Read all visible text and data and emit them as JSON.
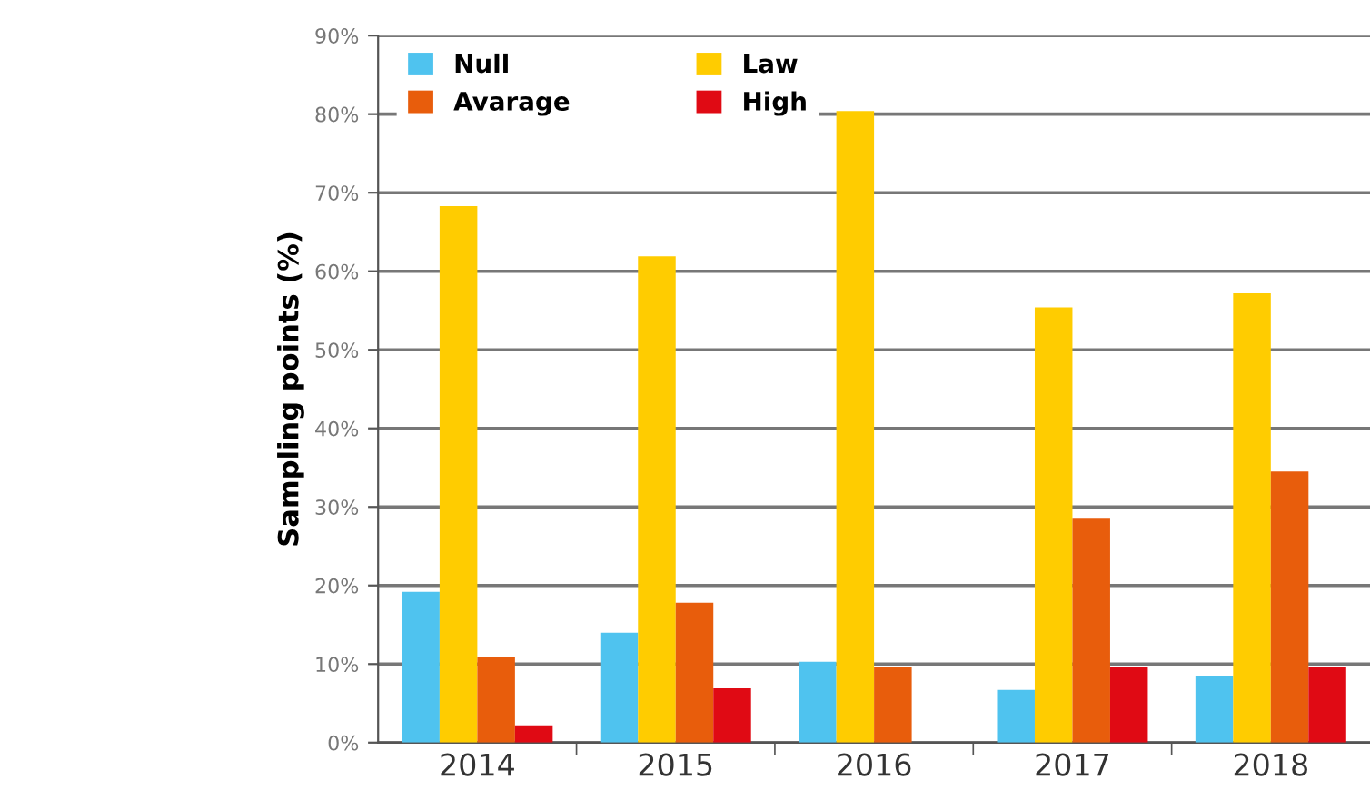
{
  "chart_data": {
    "type": "bar",
    "ylabel": "Sampling points (%)",
    "categories": [
      "2014",
      "2015",
      "2016",
      "2017",
      "2018"
    ],
    "series": [
      {
        "name": "Null",
        "color": "#4fc3ef",
        "values": [
          19.2,
          14.0,
          10.3,
          6.7,
          8.5
        ]
      },
      {
        "name": "Law",
        "color": "#ffcc00",
        "values": [
          68.3,
          61.9,
          80.4,
          55.4,
          57.2
        ]
      },
      {
        "name": "Avarage",
        "color": "#e85d0c",
        "values": [
          10.9,
          17.8,
          9.6,
          28.5,
          34.5
        ]
      },
      {
        "name": "High",
        "color": "#e00a14",
        "values": [
          2.2,
          6.9,
          0,
          9.7,
          9.6
        ]
      }
    ],
    "ylim": [
      0,
      90
    ],
    "yticks": [
      {
        "value": 0,
        "label": "0%"
      },
      {
        "value": 10,
        "label": "10%"
      },
      {
        "value": 20,
        "label": "20%"
      },
      {
        "value": 30,
        "label": "30%"
      },
      {
        "value": 40,
        "label": "40%"
      },
      {
        "value": 50,
        "label": "50%"
      },
      {
        "value": 60,
        "label": "60%"
      },
      {
        "value": 70,
        "label": "70%"
      },
      {
        "value": 80,
        "label": "80%"
      },
      {
        "value": 90,
        "label": "90%"
      }
    ],
    "grid": "y",
    "legend": "top left"
  }
}
